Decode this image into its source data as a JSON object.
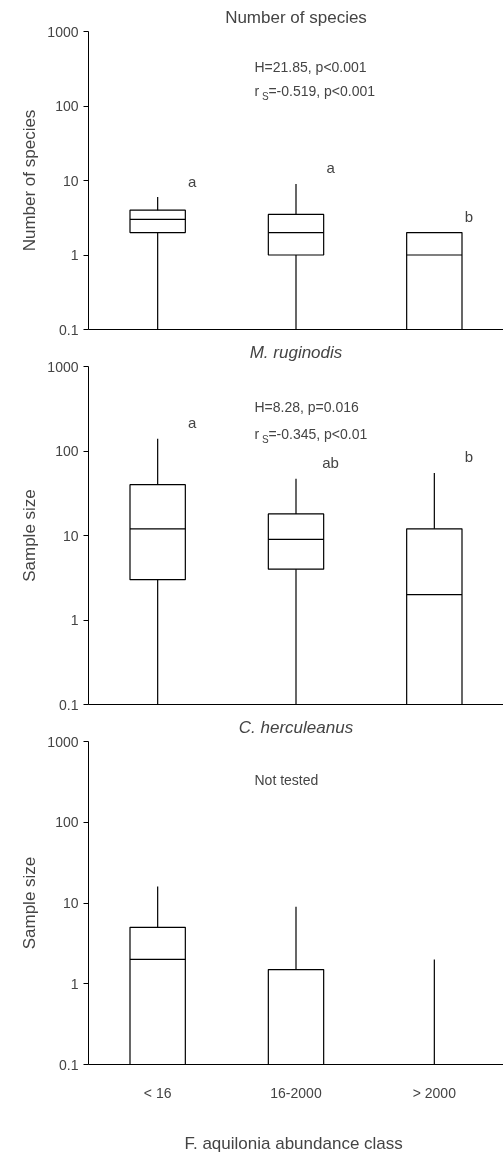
{
  "chart_data": [
    {
      "type": "box",
      "title": "Number of species",
      "ylabel": "Number of species",
      "categories": [
        "< 16",
        "16-2000",
        "> 2000"
      ],
      "log": true,
      "ylim": [
        0.1,
        1000
      ],
      "yticks": [
        0.1,
        1,
        10,
        100,
        1000
      ],
      "tick_labels": "y",
      "series": [
        {
          "color": "#000000",
          "boxes": [
            {
              "low": 0.1,
              "q1": 2,
              "median": 3,
              "q3": 4,
              "high": 6
            },
            {
              "low": 0.1,
              "q1": 1,
              "median": 2,
              "q3": 3.5,
              "high": 9
            },
            {
              "low": 0.1,
              "q1": 0.1,
              "median": 1,
              "q3": 2,
              "high": 2
            }
          ]
        }
      ],
      "annotations": [
        "H=21.85, p<0.001",
        "r$_{S}$=-0.519, p<0.001",
        {
          "text": "a",
          "x": "< 16",
          "y": 6
        },
        {
          "text": "a",
          "x": "16-2000",
          "y": 9
        },
        {
          "text": "b",
          "x": "> 2000",
          "y": 2
        }
      ]
    },
    {
      "type": "box",
      "title": "M. ruginodis",
      "ylabel": "Sample size",
      "categories": [
        "< 16",
        "16-2000",
        "> 2000"
      ],
      "log": true,
      "ylim": [
        0.1,
        1000
      ],
      "yticks": [
        0.1,
        1,
        10,
        100,
        1000
      ],
      "tick_labels": "y",
      "series": [
        {
          "color": "#000000",
          "boxes": [
            {
              "low": 0.1,
              "q1": 3,
              "median": 12,
              "q3": 40,
              "high": 140
            },
            {
              "low": 0.1,
              "q1": 4,
              "median": 9,
              "q3": 18,
              "high": 47
            },
            {
              "low": 0.1,
              "q1": 0.1,
              "median": 2,
              "q3": 12,
              "high": 55
            }
          ]
        }
      ],
      "annotations": [
        "H=8.28, p=0.016",
        "r$_{S}$=-0.345, p<0.01",
        {
          "text": "a",
          "x": "< 16",
          "y": 140
        },
        {
          "text": "ab",
          "x": "16-2000",
          "y": 47
        },
        {
          "text": "b",
          "x": "> 2000",
          "y": 55
        }
      ]
    },
    {
      "type": "box",
      "title": "C. herculeanus",
      "ylabel": "Sample size",
      "xlabel": "F. aquilonia  abundance class",
      "categories": [
        "< 16",
        "16-2000",
        "> 2000"
      ],
      "log": true,
      "ylim": [
        0.1,
        1000
      ],
      "yticks": [
        0.1,
        1,
        10,
        100,
        1000
      ],
      "series": [
        {
          "color": "#000000",
          "boxes": [
            {
              "low": 0.1,
              "q1": 0.1,
              "median": 2,
              "q3": 5,
              "high": 16
            },
            {
              "low": 0.1,
              "q1": 0.1,
              "median": 0.1,
              "q3": 1.5,
              "high": 9
            },
            {
              "low": 0.1,
              "q1": 0.1,
              "median": 0.1,
              "q3": 0.1,
              "high": 2
            }
          ]
        }
      ],
      "annotations": [
        "Not tested"
      ]
    }
  ]
}
